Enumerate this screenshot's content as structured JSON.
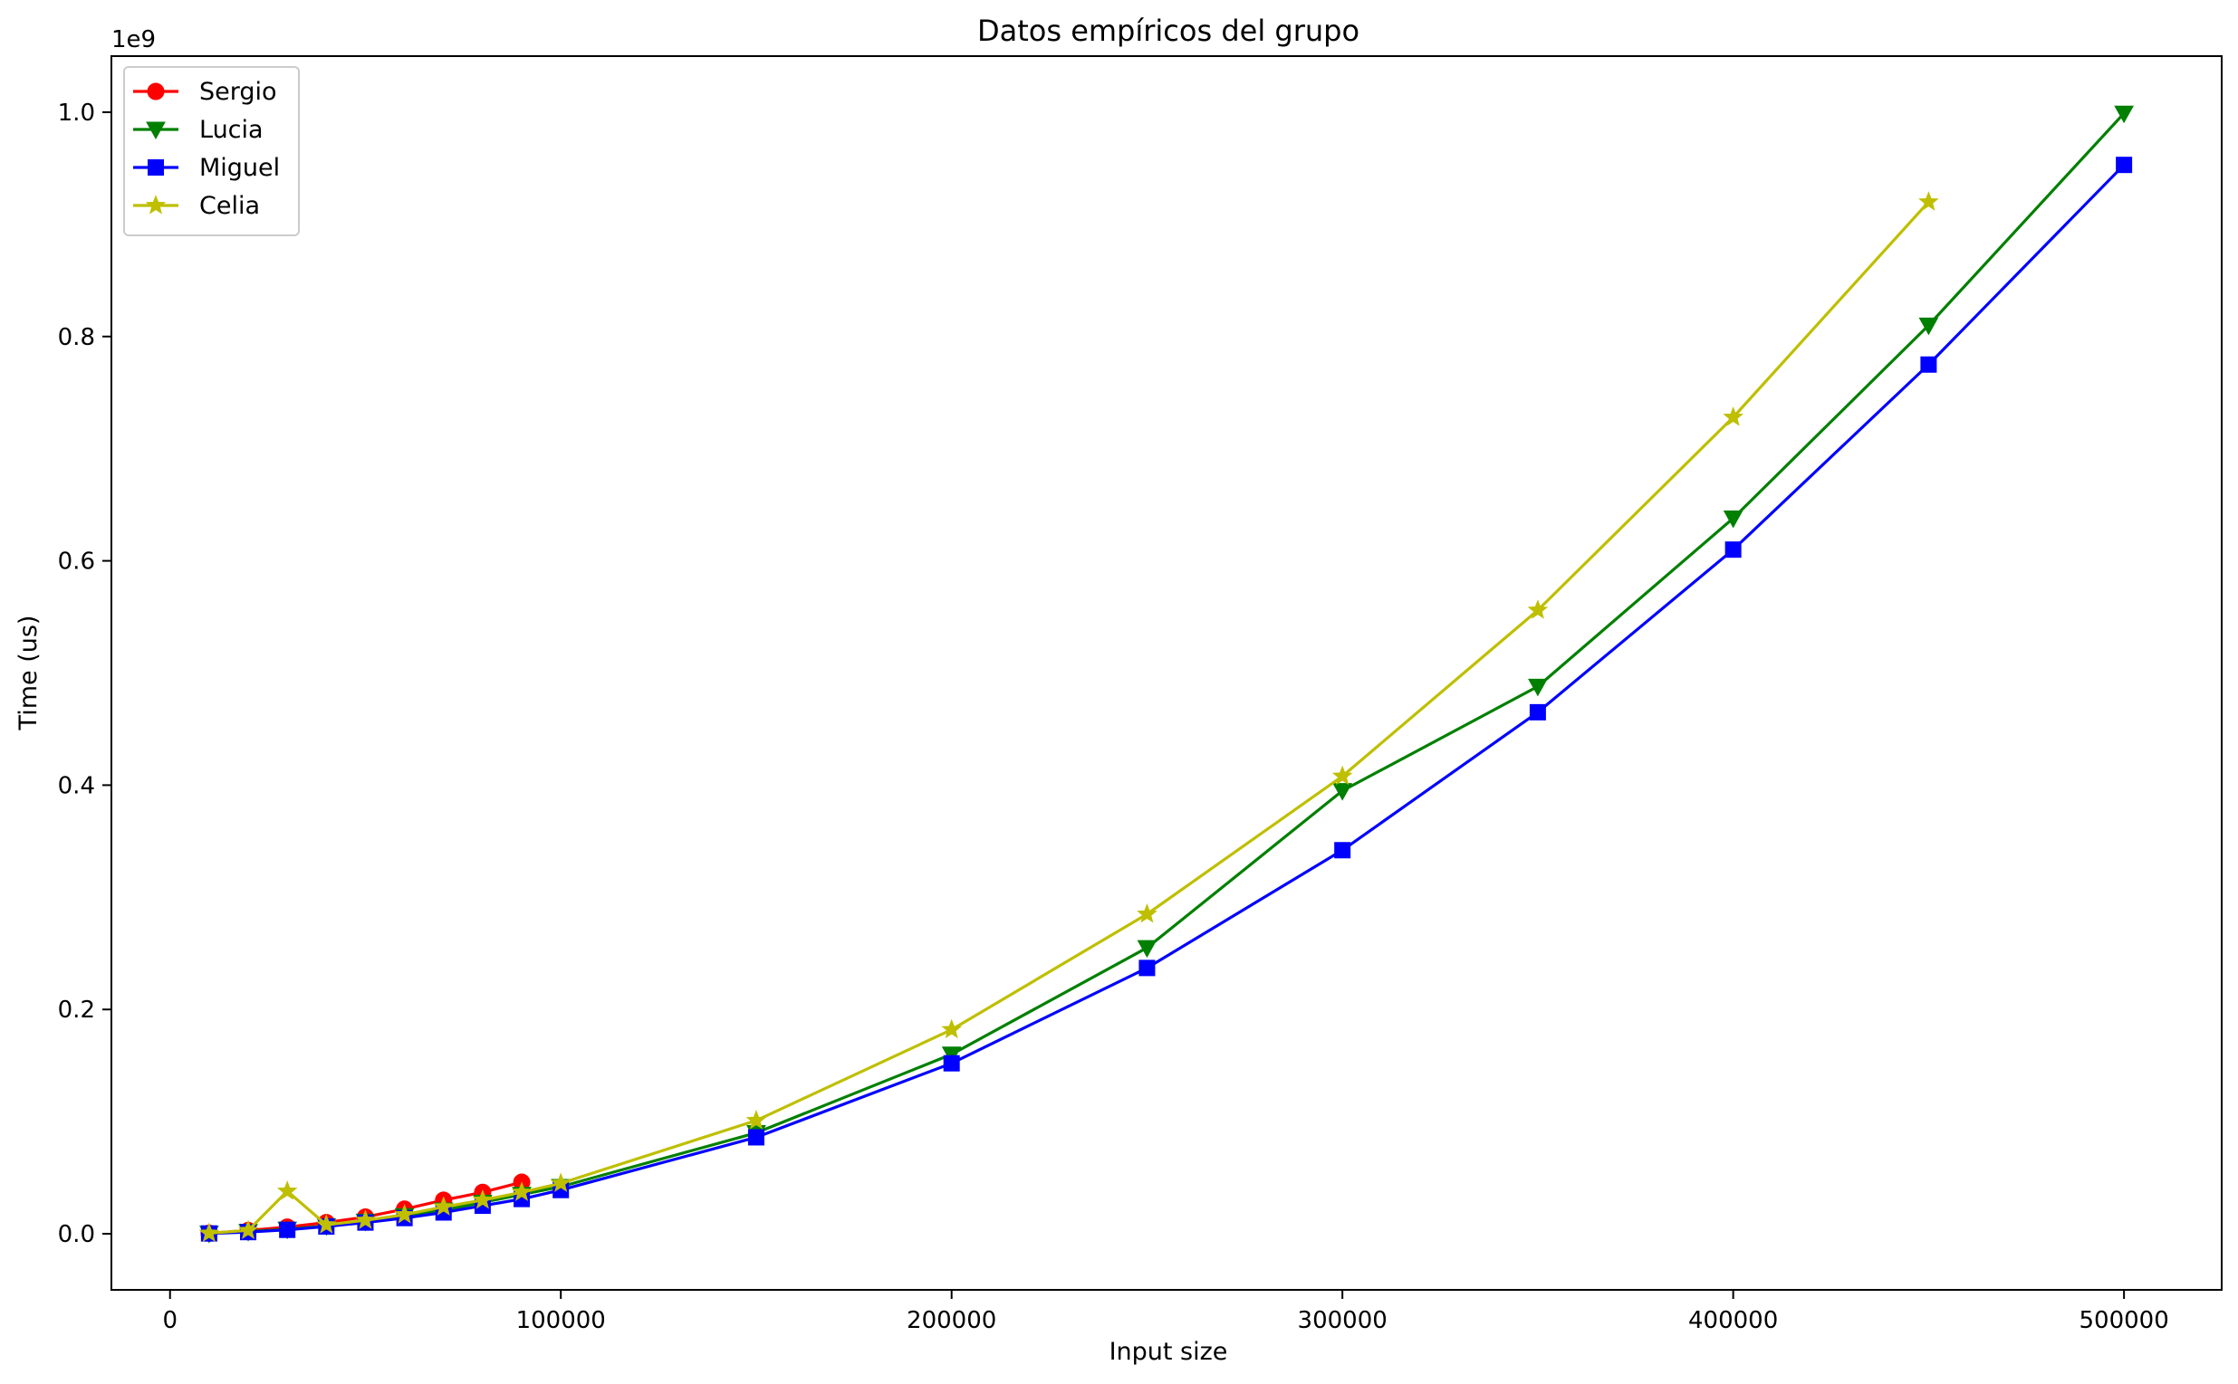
{
  "chart_data": {
    "type": "line",
    "title": "Datos empíricos del grupo",
    "xlabel": "Input size",
    "ylabel": "Time (us)",
    "y_offset_label": "1e9",
    "xlim": [
      -15000,
      525000
    ],
    "ylim": [
      -0.05,
      1.05
    ],
    "x_ticks": [
      0,
      100000,
      200000,
      300000,
      400000,
      500000
    ],
    "x_tick_labels": [
      "0",
      "100000",
      "200000",
      "300000",
      "400000",
      "500000"
    ],
    "y_ticks": [
      0.0,
      0.2,
      0.4,
      0.6,
      0.8,
      1.0
    ],
    "y_tick_labels": [
      "0.0",
      "0.2",
      "0.4",
      "0.6",
      "0.8",
      "1.0"
    ],
    "grid": false,
    "legend_position": "top-left",
    "series": [
      {
        "name": "Sergio",
        "color": "#ff0000",
        "marker": "circle",
        "x": [
          10000,
          20000,
          30000,
          40000,
          50000,
          60000,
          70000,
          80000,
          90000
        ],
        "y": [
          0.0005,
          0.003,
          0.006,
          0.01,
          0.015,
          0.022,
          0.03,
          0.037,
          0.046
        ]
      },
      {
        "name": "Lucia",
        "color": "#008000",
        "marker": "triangle-down",
        "x": [
          10000,
          20000,
          30000,
          40000,
          50000,
          60000,
          70000,
          80000,
          90000,
          100000,
          150000,
          200000,
          250000,
          300000,
          350000,
          400000,
          450000,
          500000
        ],
        "y": [
          0.0004,
          0.002,
          0.004,
          0.007,
          0.011,
          0.016,
          0.021,
          0.028,
          0.035,
          0.042,
          0.09,
          0.16,
          0.255,
          0.395,
          0.488,
          0.638,
          0.81,
          0.999
        ]
      },
      {
        "name": "Miguel",
        "color": "#0000ff",
        "marker": "square",
        "x": [
          10000,
          20000,
          30000,
          40000,
          50000,
          60000,
          70000,
          80000,
          90000,
          100000,
          150000,
          200000,
          250000,
          300000,
          350000,
          400000,
          450000,
          500000
        ],
        "y": [
          0.0003,
          0.0015,
          0.0035,
          0.0065,
          0.01,
          0.014,
          0.019,
          0.025,
          0.031,
          0.039,
          0.086,
          0.152,
          0.237,
          0.342,
          0.465,
          0.61,
          0.775,
          0.953
        ]
      },
      {
        "name": "Celia",
        "color": "#bfbf00",
        "marker": "star",
        "x": [
          10000,
          20000,
          30000,
          40000,
          50000,
          60000,
          70000,
          80000,
          90000,
          100000,
          150000,
          200000,
          250000,
          300000,
          350000,
          400000,
          450000
        ],
        "y": [
          0.0005,
          0.003,
          0.038,
          0.008,
          0.012,
          0.017,
          0.024,
          0.03,
          0.037,
          0.045,
          0.101,
          0.182,
          0.285,
          0.408,
          0.556,
          0.728,
          0.92
        ]
      }
    ]
  }
}
